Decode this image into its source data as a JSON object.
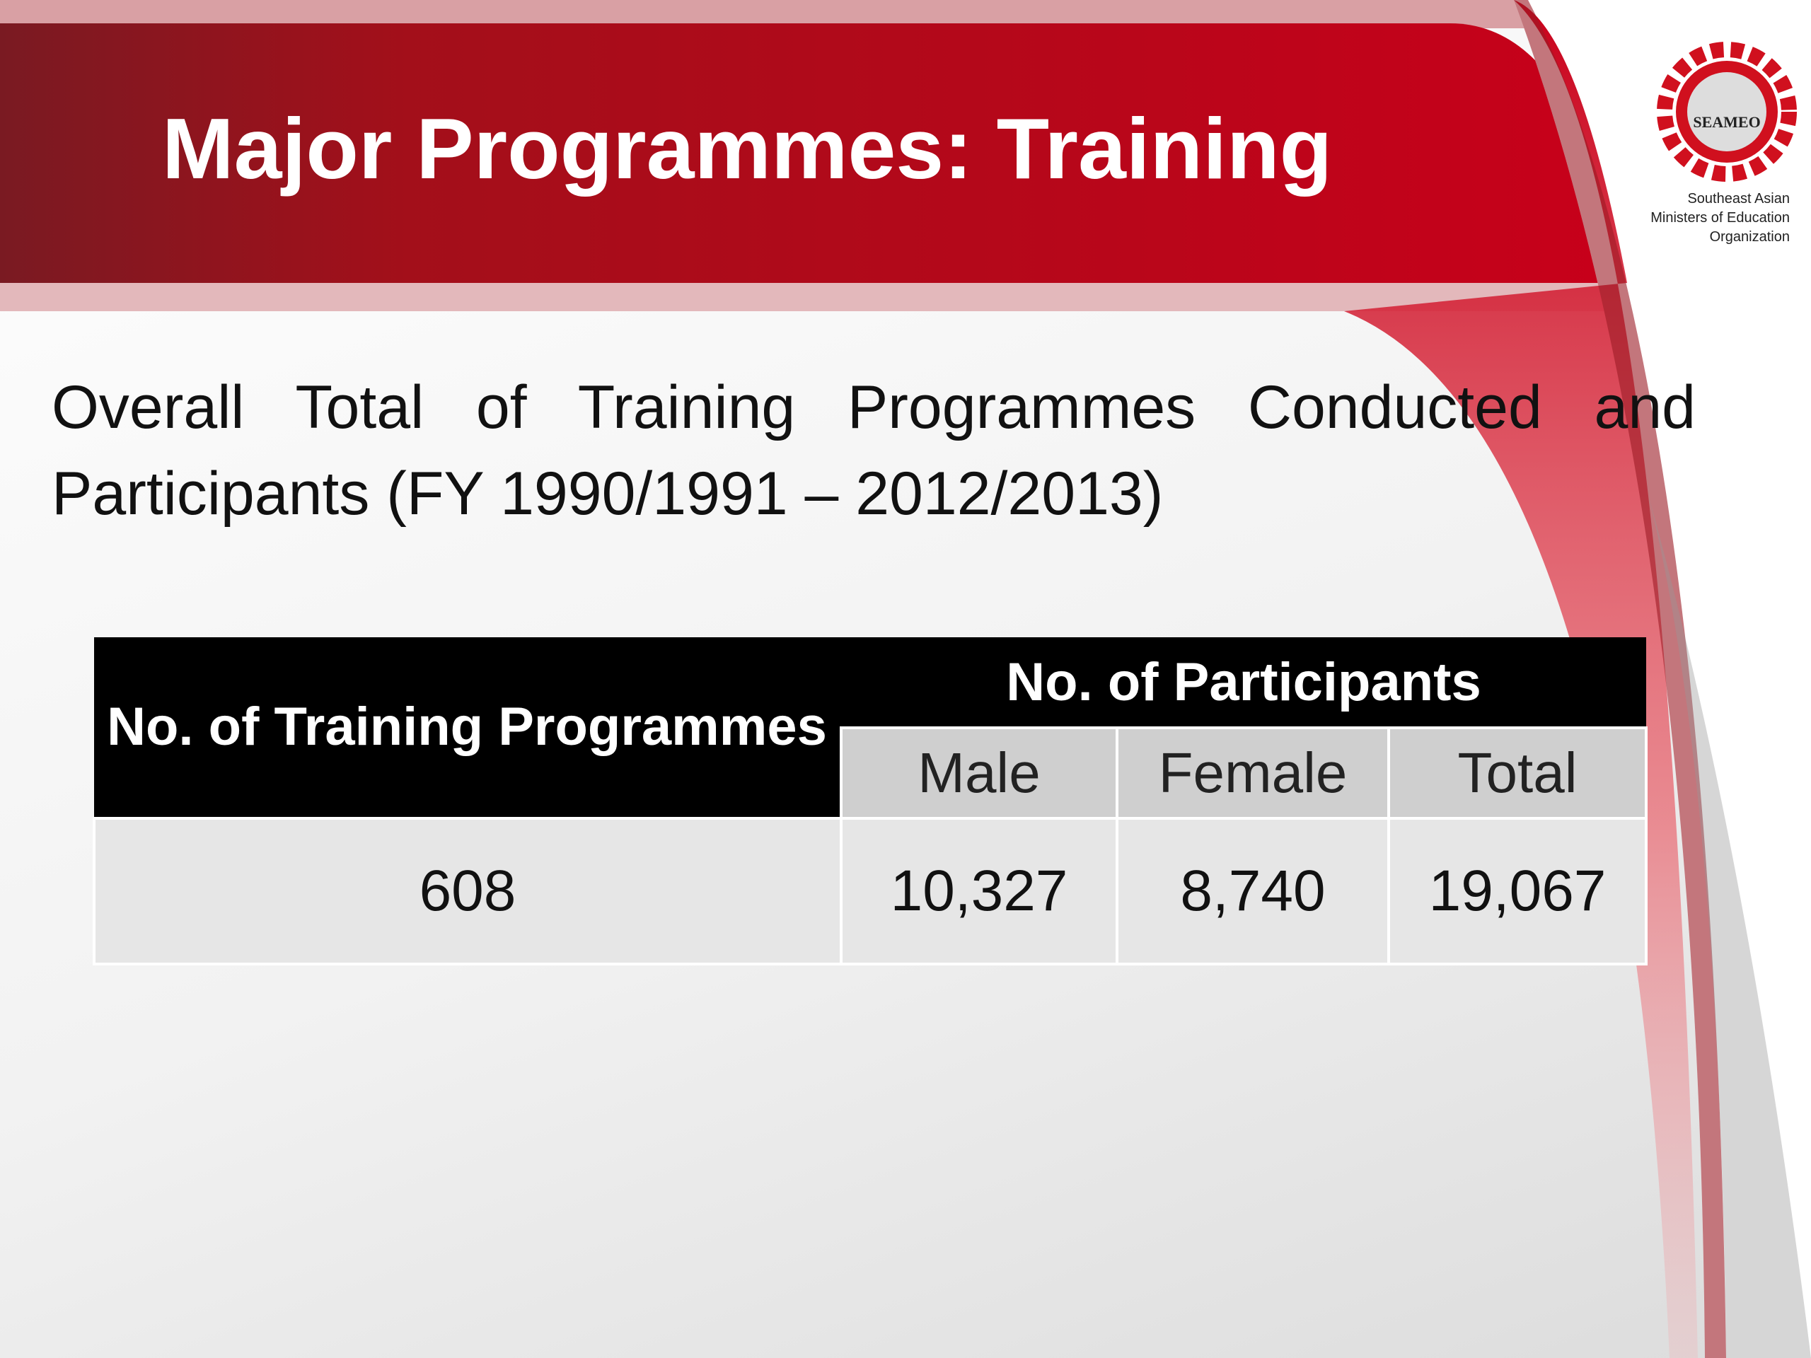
{
  "header": {
    "title": "Major Programmes: Training"
  },
  "logo": {
    "name": "SEAMEO",
    "caption": [
      "Southeast Asian",
      "Ministers of Education",
      "Organization"
    ]
  },
  "subtitle": "Overall Total of Training Programmes Conducted and Participants (FY 1990/1991 – 2012/2013)",
  "table": {
    "header": {
      "programmes": "No. of Training Programmes",
      "participants": "No. of Participants",
      "columns": [
        "Male",
        "Female",
        "Total"
      ]
    },
    "row": [
      "608",
      "10,327",
      "8,740",
      "19,067"
    ]
  }
}
